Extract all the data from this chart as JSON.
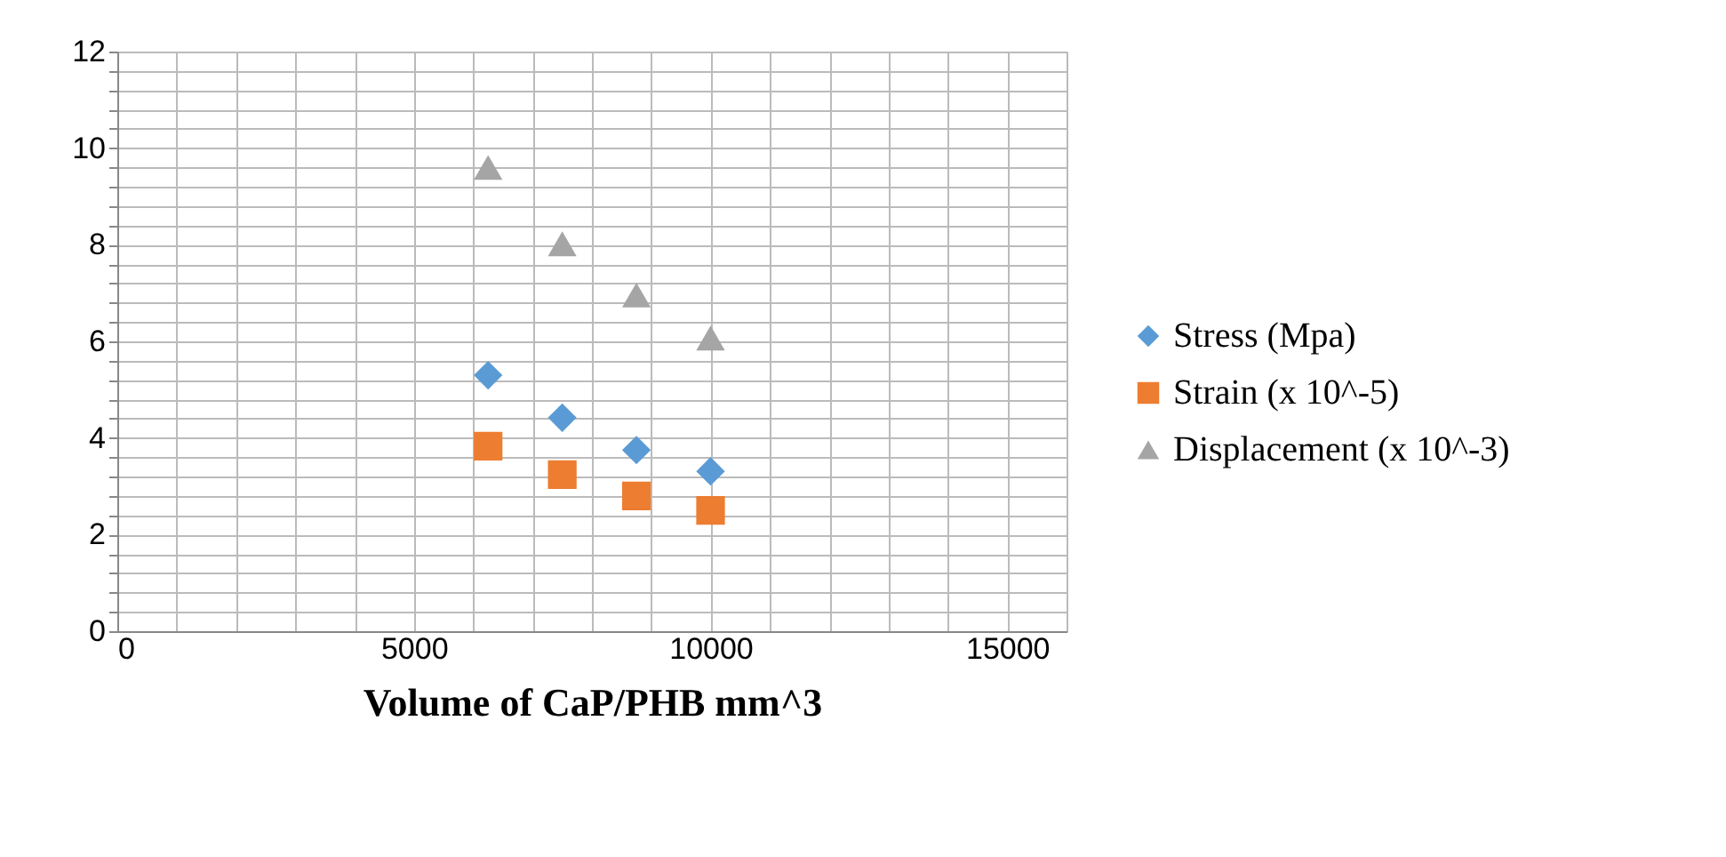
{
  "chart_data": {
    "type": "scatter",
    "xlabel": "Volume of CaP/PHB mm^3",
    "x": [
      6250,
      7500,
      8750,
      10000
    ],
    "series": [
      {
        "name": "Stress (Mpa)",
        "color": "#5b9bd5",
        "marker": "diamond",
        "values": [
          5.3,
          4.42,
          3.75,
          3.31
        ]
      },
      {
        "name": "Strain (x 10^-5)",
        "color": "#ed7d31",
        "marker": "square",
        "values": [
          3.83,
          3.24,
          2.8,
          2.5
        ]
      },
      {
        "name": "Displacement (x 10^-3)",
        "color": "#a5a5a5",
        "marker": "triangle",
        "values": [
          9.6,
          8.02,
          6.96,
          6.07
        ]
      }
    ],
    "xlim": [
      0,
      16000
    ],
    "xticks": [
      0,
      {
        "value": 1000,
        "label": null
      },
      {
        "value": 2000,
        "label": null
      },
      {
        "value": 3000,
        "label": null
      },
      {
        "value": 4000,
        "label": null
      },
      5000,
      {
        "value": 6000,
        "label": null
      },
      {
        "value": 7000,
        "label": null
      },
      {
        "value": 8000,
        "label": null
      },
      {
        "value": 9000,
        "label": null
      },
      10000,
      {
        "value": 11000,
        "label": null
      },
      {
        "value": 12000,
        "label": null
      },
      {
        "value": 13000,
        "label": null
      },
      {
        "value": 14000,
        "label": null
      },
      15000,
      {
        "value": 16000,
        "label": null
      }
    ],
    "ylim": [
      0,
      12
    ],
    "yticks": [
      0,
      {
        "value": 0.4,
        "label": null
      },
      {
        "value": 0.8,
        "label": null
      },
      {
        "value": 1.2,
        "label": null
      },
      {
        "value": 1.6,
        "label": null
      },
      2,
      {
        "value": 2.4,
        "label": null
      },
      {
        "value": 2.8,
        "label": null
      },
      {
        "value": 3.2,
        "label": null
      },
      {
        "value": 3.6,
        "label": null
      },
      4,
      {
        "value": 4.4,
        "label": null
      },
      {
        "value": 4.8,
        "label": null
      },
      {
        "value": 5.2,
        "label": null
      },
      {
        "value": 5.6,
        "label": null
      },
      6,
      {
        "value": 6.4,
        "label": null
      },
      {
        "value": 6.8,
        "label": null
      },
      {
        "value": 7.2,
        "label": null
      },
      {
        "value": 7.6,
        "label": null
      },
      8,
      {
        "value": 8.4,
        "label": null
      },
      {
        "value": 8.8,
        "label": null
      },
      {
        "value": 9.2,
        "label": null
      },
      {
        "value": 9.6,
        "label": null
      },
      10,
      {
        "value": 10.4,
        "label": null
      },
      {
        "value": 10.8,
        "label": null
      },
      {
        "value": 11.2,
        "label": null
      },
      {
        "value": 11.6,
        "label": null
      },
      12
    ],
    "grid": true,
    "legend": "right"
  }
}
